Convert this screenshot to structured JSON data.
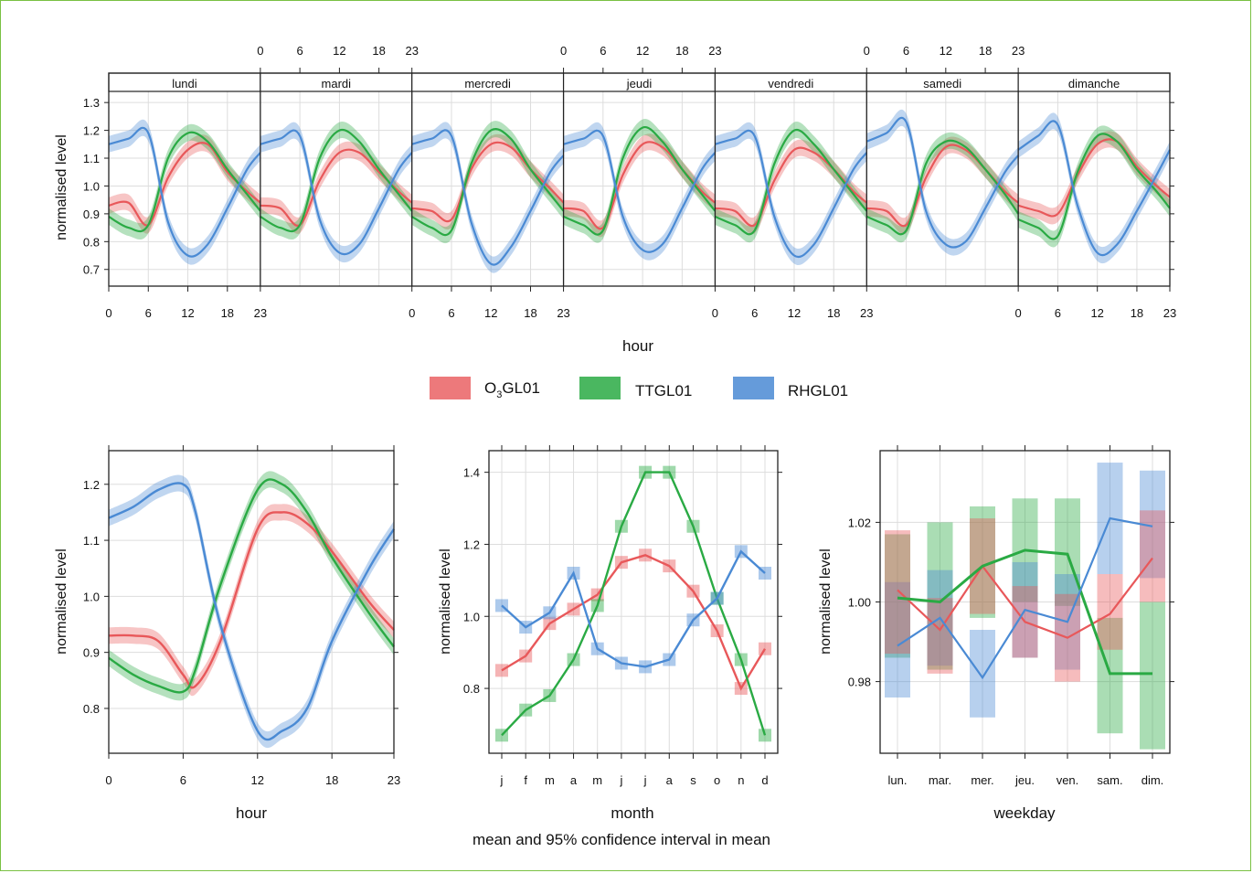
{
  "colors": {
    "o3": "#e8585a",
    "tt": "#2aaa44",
    "rh": "#4a8ad4",
    "frame": "#7ac143"
  },
  "legend": [
    {
      "key": "o3",
      "prefix": "O",
      "sub": "3",
      "suffix": "GL01"
    },
    {
      "key": "tt",
      "prefix": "TTGL01",
      "sub": "",
      "suffix": ""
    },
    {
      "key": "rh",
      "prefix": "RHGL01",
      "sub": "",
      "suffix": ""
    }
  ],
  "footer": "mean and 95% confidence interval in mean",
  "chart_data": [
    {
      "type": "line",
      "panel": "hour-weekday",
      "xlabel": "hour",
      "ylabel": "normalised level",
      "ylim": [
        0.64,
        1.34
      ],
      "yticks": [
        0.7,
        0.8,
        0.9,
        1.0,
        1.1,
        1.2,
        1.3
      ],
      "x_ticks": [
        0,
        6,
        12,
        18,
        23
      ],
      "strips": [
        "lundi",
        "mardi",
        "mercredi",
        "jeudi",
        "vendredi",
        "samedi",
        "dimanche"
      ],
      "x": [
        0,
        3,
        6,
        9,
        12,
        15,
        18,
        21,
        23
      ],
      "series": [
        {
          "key": "o3",
          "days": [
            [
              0.93,
              0.94,
              0.86,
              1.03,
              1.13,
              1.15,
              1.05,
              0.98,
              0.94
            ],
            [
              0.93,
              0.92,
              0.86,
              1.02,
              1.12,
              1.12,
              1.05,
              0.98,
              0.94
            ],
            [
              0.92,
              0.91,
              0.88,
              1.06,
              1.15,
              1.14,
              1.06,
              0.99,
              0.94
            ],
            [
              0.92,
              0.91,
              0.85,
              1.04,
              1.15,
              1.14,
              1.06,
              0.98,
              0.94
            ],
            [
              0.92,
              0.91,
              0.86,
              1.02,
              1.13,
              1.12,
              1.06,
              0.98,
              0.94
            ],
            [
              0.92,
              0.91,
              0.86,
              1.03,
              1.14,
              1.13,
              1.06,
              0.98,
              0.94
            ],
            [
              0.93,
              0.91,
              0.9,
              1.04,
              1.15,
              1.16,
              1.07,
              1.0,
              0.96
            ]
          ]
        },
        {
          "key": "tt",
          "days": [
            [
              0.89,
              0.85,
              0.86,
              1.1,
              1.19,
              1.16,
              1.06,
              0.97,
              0.91
            ],
            [
              0.89,
              0.85,
              0.86,
              1.1,
              1.2,
              1.16,
              1.06,
              0.97,
              0.91
            ],
            [
              0.89,
              0.85,
              0.84,
              1.08,
              1.2,
              1.17,
              1.06,
              0.97,
              0.91
            ],
            [
              0.89,
              0.86,
              0.84,
              1.1,
              1.21,
              1.16,
              1.06,
              0.97,
              0.91
            ],
            [
              0.89,
              0.86,
              0.84,
              1.08,
              1.2,
              1.15,
              1.06,
              0.97,
              0.91
            ],
            [
              0.89,
              0.86,
              0.84,
              1.08,
              1.16,
              1.14,
              1.06,
              0.97,
              0.9
            ],
            [
              0.88,
              0.85,
              0.82,
              1.05,
              1.18,
              1.16,
              1.06,
              0.98,
              0.92
            ]
          ]
        },
        {
          "key": "rh",
          "days": [
            [
              1.15,
              1.17,
              1.19,
              0.87,
              0.75,
              0.79,
              0.92,
              1.06,
              1.12
            ],
            [
              1.15,
              1.17,
              1.18,
              0.88,
              0.76,
              0.79,
              0.92,
              1.06,
              1.12
            ],
            [
              1.15,
              1.17,
              1.18,
              0.87,
              0.72,
              0.78,
              0.91,
              1.05,
              1.11
            ],
            [
              1.15,
              1.17,
              1.18,
              0.89,
              0.77,
              0.79,
              0.92,
              1.06,
              1.12
            ],
            [
              1.15,
              1.17,
              1.18,
              0.89,
              0.75,
              0.79,
              0.92,
              1.06,
              1.12
            ],
            [
              1.16,
              1.19,
              1.23,
              0.91,
              0.79,
              0.8,
              0.92,
              1.05,
              1.11
            ],
            [
              1.13,
              1.18,
              1.22,
              0.93,
              0.76,
              0.79,
              0.91,
              1.04,
              1.13
            ]
          ]
        }
      ]
    },
    {
      "type": "line",
      "panel": "hour",
      "xlabel": "hour",
      "ylabel": "normalised level",
      "ylim": [
        0.72,
        1.26
      ],
      "yticks": [
        0.8,
        0.9,
        1.0,
        1.1,
        1.2
      ],
      "x_ticks": [
        0,
        6,
        12,
        18,
        23
      ],
      "x": [
        0,
        2,
        4,
        6,
        7,
        9,
        12,
        14,
        16,
        18,
        21,
        23
      ],
      "series": [
        {
          "key": "o3",
          "values": [
            0.93,
            0.93,
            0.92,
            0.86,
            0.84,
            0.92,
            1.12,
            1.15,
            1.13,
            1.08,
            0.99,
            0.94
          ]
        },
        {
          "key": "tt",
          "values": [
            0.89,
            0.86,
            0.84,
            0.83,
            0.87,
            1.02,
            1.19,
            1.2,
            1.15,
            1.07,
            0.97,
            0.91
          ]
        },
        {
          "key": "rh",
          "values": [
            1.14,
            1.16,
            1.19,
            1.2,
            1.15,
            0.95,
            0.76,
            0.76,
            0.8,
            0.92,
            1.05,
            1.12
          ]
        }
      ]
    },
    {
      "type": "line",
      "panel": "month",
      "xlabel": "month",
      "ylabel": "normalised level",
      "ylim": [
        0.62,
        1.46
      ],
      "yticks": [
        0.8,
        1.0,
        1.2,
        1.4
      ],
      "categories": [
        "j",
        "f",
        "m",
        "a",
        "m",
        "j",
        "j",
        "a",
        "s",
        "o",
        "n",
        "d"
      ],
      "series": [
        {
          "key": "o3",
          "values": [
            0.85,
            0.89,
            0.98,
            1.02,
            1.06,
            1.15,
            1.17,
            1.14,
            1.07,
            0.96,
            0.8,
            0.91
          ]
        },
        {
          "key": "tt",
          "values": [
            0.67,
            0.74,
            0.78,
            0.88,
            1.03,
            1.25,
            1.4,
            1.4,
            1.25,
            1.05,
            0.88,
            0.67
          ]
        },
        {
          "key": "rh",
          "values": [
            1.03,
            0.97,
            1.01,
            1.12,
            0.91,
            0.87,
            0.86,
            0.88,
            0.99,
            1.05,
            1.18,
            1.12
          ]
        }
      ]
    },
    {
      "type": "line",
      "panel": "weekday",
      "xlabel": "weekday",
      "ylabel": "normalised level",
      "ylim": [
        0.962,
        1.038
      ],
      "yticks": [
        0.98,
        1.0,
        1.02
      ],
      "categories": [
        "lun.",
        "mar.",
        "mer.",
        "jeu.",
        "ven.",
        "sam.",
        "dim."
      ],
      "series": [
        {
          "key": "o3",
          "mean": [
            1.003,
            0.993,
            1.009,
            0.995,
            0.991,
            0.997,
            1.011
          ],
          "lo": [
            0.987,
            0.982,
            0.997,
            0.986,
            0.98,
            0.988,
            1.0
          ],
          "hi": [
            1.018,
            1.001,
            1.021,
            1.004,
            1.002,
            1.007,
            1.023
          ]
        },
        {
          "key": "tt",
          "mean": [
            1.001,
            1.0,
            1.009,
            1.013,
            1.012,
            0.982,
            0.982
          ],
          "lo": [
            0.986,
            0.983,
            0.996,
            1.0,
            0.999,
            0.967,
            0.963
          ],
          "hi": [
            1.017,
            1.02,
            1.024,
            1.026,
            1.026,
            0.996,
            1.0
          ]
        },
        {
          "key": "rh",
          "mean": [
            0.989,
            0.996,
            0.981,
            0.998,
            0.995,
            1.021,
            1.019
          ],
          "lo": [
            0.976,
            0.984,
            0.971,
            0.986,
            0.983,
            1.007,
            1.006
          ],
          "hi": [
            1.005,
            1.008,
            0.993,
            1.01,
            1.007,
            1.035,
            1.033
          ]
        }
      ]
    }
  ]
}
